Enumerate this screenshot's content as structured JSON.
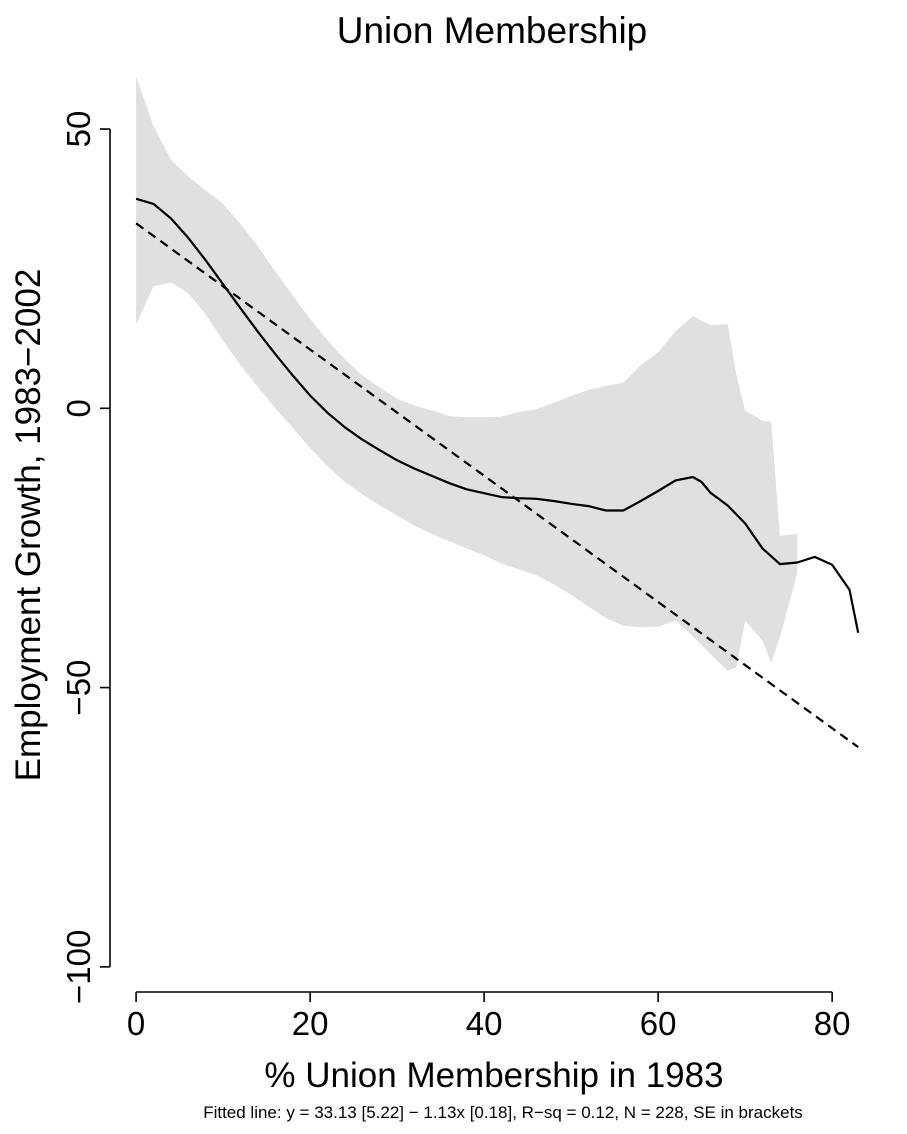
{
  "chart_data": {
    "type": "line",
    "title": "Union Membership",
    "xlabel": "% Union Membership in 1983",
    "ylabel": "Employment Growth, 1983−2002",
    "note": "Fitted line: y = 33.13 [5.22] − 1.13x [0.18], R−sq = 0.12, N = 228, SE in brackets",
    "xlim": [
      -3,
      85.5
    ],
    "ylim": [
      -104.5,
      62
    ],
    "xticks": [
      0,
      20,
      40,
      60,
      80
    ],
    "xtick_labels": [
      "0",
      "20",
      "40",
      "60",
      "80"
    ],
    "yticks": [
      -100,
      -50,
      0,
      50
    ],
    "ytick_labels": [
      "−100",
      "−50",
      "0",
      "50"
    ],
    "grid": false,
    "legend": "none",
    "colors": {
      "band": "#e0e0e0",
      "line": "#000000"
    },
    "series": [
      {
        "style": "solid",
        "x": [
          0,
          2,
          4,
          6,
          8,
          10,
          12,
          14,
          16,
          18,
          20,
          22,
          24,
          26,
          28,
          30,
          32,
          34,
          36,
          38,
          40,
          42,
          44,
          46,
          48,
          50,
          52,
          54,
          56,
          58,
          60,
          62,
          64,
          65,
          66,
          68,
          70,
          72,
          74,
          76,
          78,
          80,
          82,
          83
        ],
        "y": [
          37.5,
          36.6,
          34,
          30.5,
          26.5,
          22.2,
          17.9,
          13.7,
          9.7,
          5.9,
          2.3,
          -0.8,
          -3.4,
          -5.6,
          -7.5,
          -9.3,
          -10.8,
          -12.1,
          -13.4,
          -14.5,
          -15.2,
          -15.9,
          -16.1,
          -16.2,
          -16.6,
          -17.1,
          -17.5,
          -18.3,
          -18.3,
          -16.6,
          -14.8,
          -12.9,
          -12.3,
          -13.2,
          -15.1,
          -17.4,
          -20.6,
          -25.1,
          -27.9,
          -27.6,
          -26.6,
          -28,
          -32.5,
          -40.2
        ]
      },
      {
        "style": "dashed",
        "x": [
          0,
          83
        ],
        "y": [
          33.13,
          -60.66
        ]
      }
    ],
    "band": {
      "x": [
        0,
        2,
        4,
        6,
        8,
        10,
        12,
        14,
        16,
        18,
        20,
        22,
        24,
        26,
        28,
        30,
        32,
        34,
        36,
        38,
        40,
        42,
        44,
        46,
        48,
        50,
        52,
        54,
        56,
        58,
        60,
        62,
        64,
        66,
        68,
        69,
        70,
        72,
        73,
        74,
        76
      ],
      "upper": [
        59.5,
        50.5,
        44.5,
        41.5,
        39,
        36.6,
        33,
        29,
        24.5,
        20.2,
        16,
        12.2,
        8.8,
        5.9,
        3.7,
        1.7,
        0.5,
        -0.4,
        -1.4,
        -1.6,
        -1.6,
        -1.5,
        -0.6,
        -0.2,
        1,
        2.2,
        3.3,
        4,
        4.6,
        7.7,
        10,
        13.8,
        16.5,
        14.9,
        15.1,
        6,
        -0.4,
        -2.2,
        -2.4,
        -22.8,
        -22.5
      ],
      "lower": [
        15,
        21.8,
        22.6,
        20.6,
        16.8,
        12.1,
        7.7,
        3.8,
        0,
        -3.5,
        -7.1,
        -10.4,
        -13.2,
        -15.4,
        -17.4,
        -19.2,
        -21,
        -22.5,
        -23.8,
        -25.1,
        -26.3,
        -27.8,
        -28.8,
        -29.9,
        -31.5,
        -33.4,
        -35.5,
        -37.6,
        -38.9,
        -39.2,
        -39.1,
        -38,
        -40.8,
        -44,
        -47,
        -46.4,
        -38,
        -41.6,
        -45.6,
        -41,
        -29.5
      ]
    }
  }
}
